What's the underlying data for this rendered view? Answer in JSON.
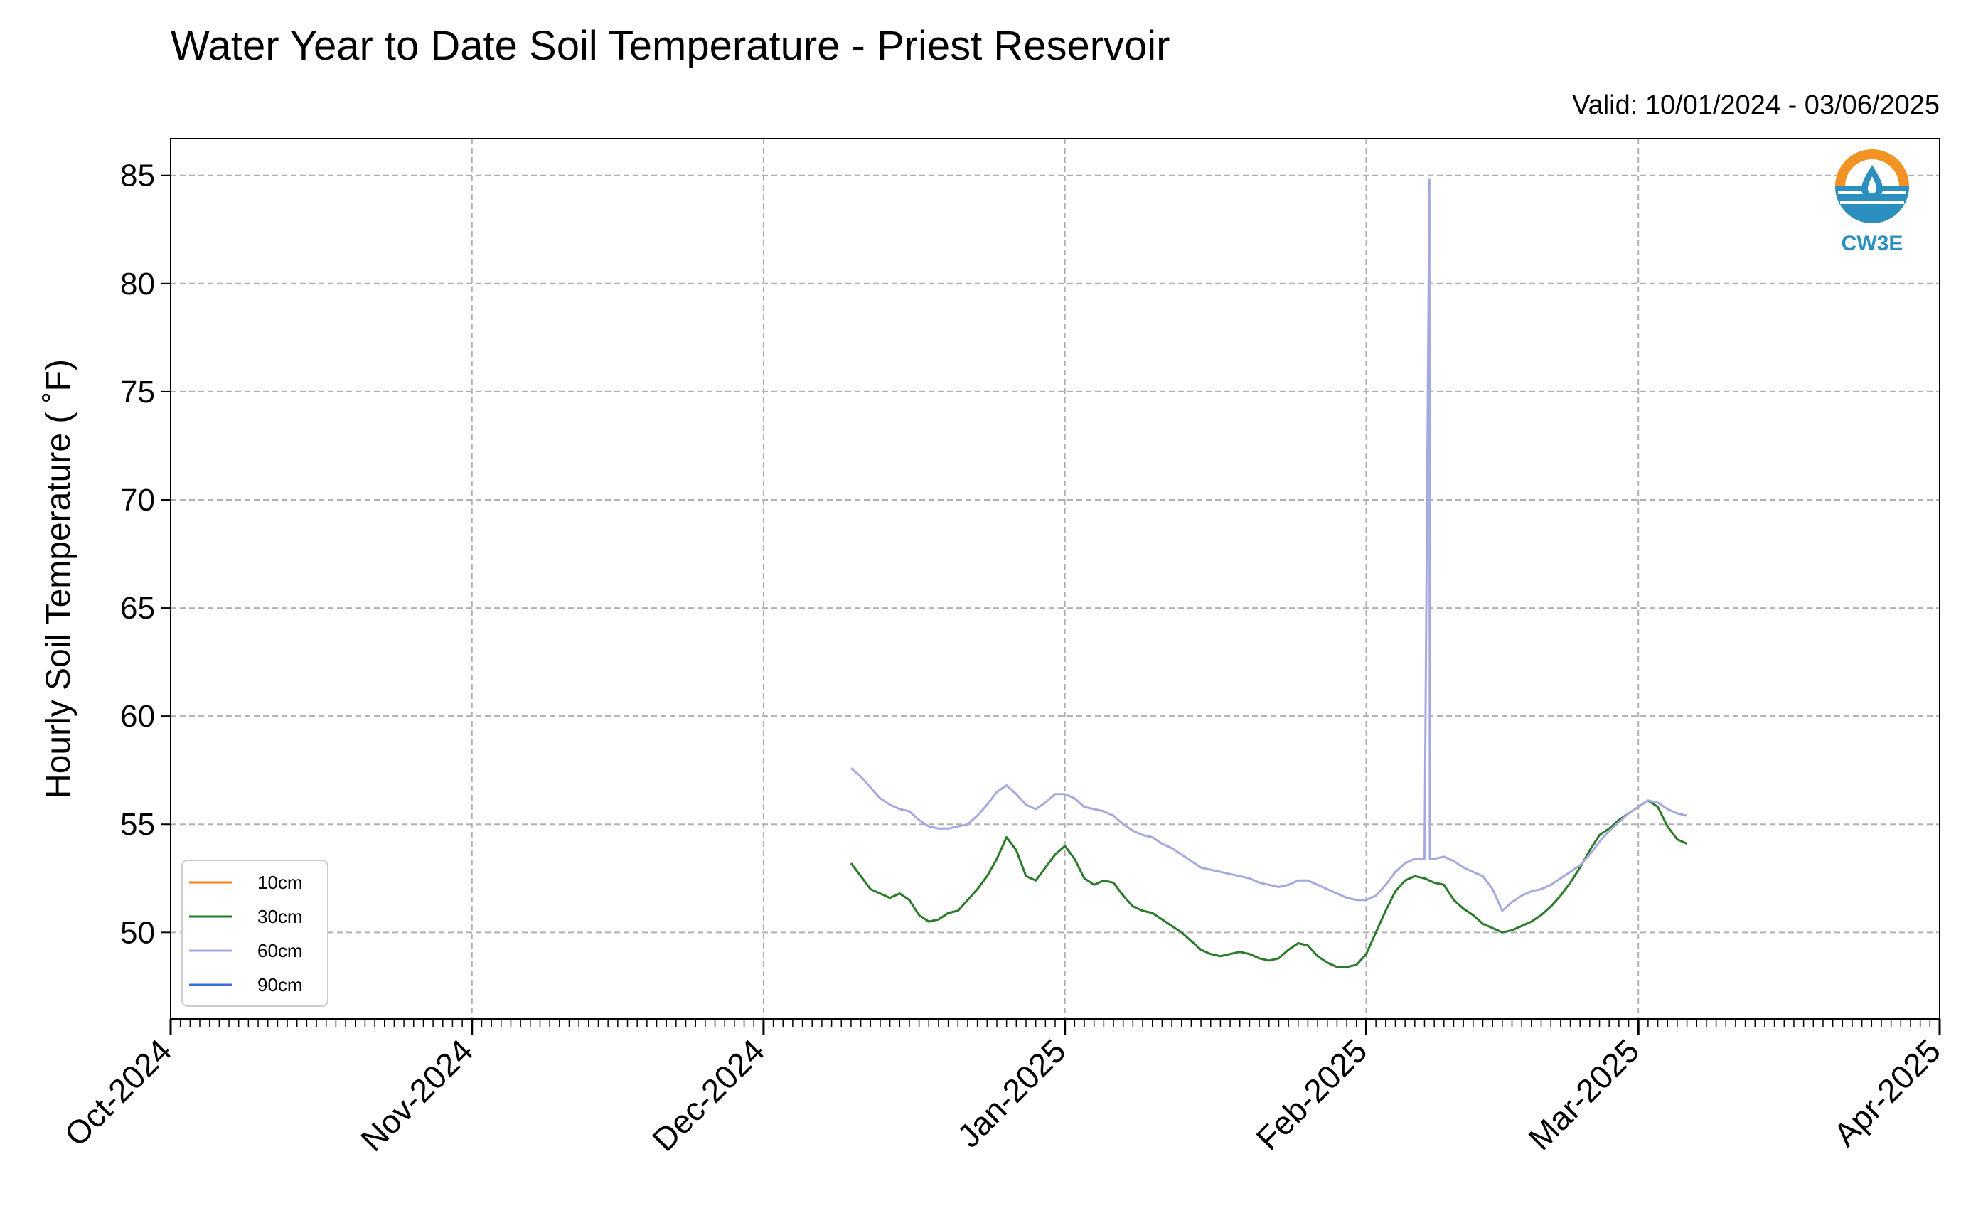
{
  "chart_data": {
    "type": "line",
    "title": "Water Year to Date Soil Temperature - Priest Reservoir",
    "subtitle": "Valid: 10/01/2024 - 03/06/2025",
    "xlabel": "",
    "ylabel": "Hourly Soil Temperature ( ˚F)",
    "x_range": [
      "2024-10-01",
      "2025-04-01"
    ],
    "ylim": [
      46.0,
      86.7
    ],
    "y_ticks": [
      50,
      55,
      60,
      65,
      70,
      75,
      80,
      85
    ],
    "x_ticks": [
      {
        "date": "2024-10-01",
        "label": "Oct-2024"
      },
      {
        "date": "2024-11-01",
        "label": "Nov-2024"
      },
      {
        "date": "2024-12-01",
        "label": "Dec-2024"
      },
      {
        "date": "2025-01-01",
        "label": "Jan-2025"
      },
      {
        "date": "2025-02-01",
        "label": "Feb-2025"
      },
      {
        "date": "2025-03-01",
        "label": "Mar-2025"
      },
      {
        "date": "2025-04-01",
        "label": "Apr-2025"
      }
    ],
    "grid": true,
    "legend_position": "lower-left",
    "series": [
      {
        "name": "10cm",
        "color": "#ff7f0e",
        "points": []
      },
      {
        "name": "30cm",
        "color": "#2a7a2a",
        "points": [
          [
            "2024-12-10",
            53.2
          ],
          [
            "2024-12-11",
            52.6
          ],
          [
            "2024-12-12",
            52.0
          ],
          [
            "2024-12-13",
            51.8
          ],
          [
            "2024-12-14",
            51.6
          ],
          [
            "2024-12-15",
            51.8
          ],
          [
            "2024-12-16",
            51.5
          ],
          [
            "2024-12-17",
            50.8
          ],
          [
            "2024-12-18",
            50.5
          ],
          [
            "2024-12-19",
            50.6
          ],
          [
            "2024-12-20",
            50.9
          ],
          [
            "2024-12-21",
            51.0
          ],
          [
            "2024-12-22",
            51.5
          ],
          [
            "2024-12-23",
            52.0
          ],
          [
            "2024-12-24",
            52.6
          ],
          [
            "2024-12-25",
            53.4
          ],
          [
            "2024-12-26",
            54.4
          ],
          [
            "2024-12-27",
            53.8
          ],
          [
            "2024-12-28",
            52.6
          ],
          [
            "2024-12-29",
            52.4
          ],
          [
            "2024-12-30",
            53.0
          ],
          [
            "2024-12-31",
            53.6
          ],
          [
            "2025-01-01",
            54.0
          ],
          [
            "2025-01-02",
            53.4
          ],
          [
            "2025-01-03",
            52.5
          ],
          [
            "2025-01-04",
            52.2
          ],
          [
            "2025-01-05",
            52.4
          ],
          [
            "2025-01-06",
            52.3
          ],
          [
            "2025-01-07",
            51.7
          ],
          [
            "2025-01-08",
            51.2
          ],
          [
            "2025-01-09",
            51.0
          ],
          [
            "2025-01-10",
            50.9
          ],
          [
            "2025-01-11",
            50.6
          ],
          [
            "2025-01-12",
            50.3
          ],
          [
            "2025-01-13",
            50.0
          ],
          [
            "2025-01-14",
            49.6
          ],
          [
            "2025-01-15",
            49.2
          ],
          [
            "2025-01-16",
            49.0
          ],
          [
            "2025-01-17",
            48.9
          ],
          [
            "2025-01-18",
            49.0
          ],
          [
            "2025-01-19",
            49.1
          ],
          [
            "2025-01-20",
            49.0
          ],
          [
            "2025-01-21",
            48.8
          ],
          [
            "2025-01-22",
            48.7
          ],
          [
            "2025-01-23",
            48.8
          ],
          [
            "2025-01-24",
            49.2
          ],
          [
            "2025-01-25",
            49.5
          ],
          [
            "2025-01-26",
            49.4
          ],
          [
            "2025-01-27",
            48.9
          ],
          [
            "2025-01-28",
            48.6
          ],
          [
            "2025-01-29",
            48.4
          ],
          [
            "2025-01-30",
            48.4
          ],
          [
            "2025-01-31",
            48.5
          ],
          [
            "2025-02-01",
            49.0
          ],
          [
            "2025-02-02",
            50.0
          ],
          [
            "2025-02-03",
            51.0
          ],
          [
            "2025-02-04",
            51.9
          ],
          [
            "2025-02-05",
            52.4
          ],
          [
            "2025-02-06",
            52.6
          ],
          [
            "2025-02-07",
            52.5
          ],
          [
            "2025-02-08",
            52.3
          ],
          [
            "2025-02-09",
            52.2
          ],
          [
            "2025-02-10",
            51.5
          ],
          [
            "2025-02-11",
            51.1
          ],
          [
            "2025-02-12",
            50.8
          ],
          [
            "2025-02-13",
            50.4
          ],
          [
            "2025-02-14",
            50.2
          ],
          [
            "2025-02-15",
            50.0
          ],
          [
            "2025-02-16",
            50.1
          ],
          [
            "2025-02-17",
            50.3
          ],
          [
            "2025-02-18",
            50.5
          ],
          [
            "2025-02-19",
            50.8
          ],
          [
            "2025-02-20",
            51.2
          ],
          [
            "2025-02-21",
            51.7
          ],
          [
            "2025-02-22",
            52.3
          ],
          [
            "2025-02-23",
            53.0
          ],
          [
            "2025-02-24",
            53.8
          ],
          [
            "2025-02-25",
            54.5
          ],
          [
            "2025-02-26",
            54.8
          ],
          [
            "2025-02-27",
            55.2
          ],
          [
            "2025-02-28",
            55.5
          ],
          [
            "2025-03-01",
            55.8
          ],
          [
            "2025-03-02",
            56.1
          ],
          [
            "2025-03-03",
            55.8
          ],
          [
            "2025-03-04",
            54.9
          ],
          [
            "2025-03-05",
            54.3
          ],
          [
            "2025-03-06",
            54.1
          ]
        ]
      },
      {
        "name": "60cm",
        "color": "#a6a8e0",
        "points": [
          [
            "2024-12-10",
            57.6
          ],
          [
            "2024-12-11",
            57.2
          ],
          [
            "2024-12-12",
            56.7
          ],
          [
            "2024-12-13",
            56.2
          ],
          [
            "2024-12-14",
            55.9
          ],
          [
            "2024-12-15",
            55.7
          ],
          [
            "2024-12-16",
            55.6
          ],
          [
            "2024-12-17",
            55.2
          ],
          [
            "2024-12-18",
            54.9
          ],
          [
            "2024-12-19",
            54.8
          ],
          [
            "2024-12-20",
            54.8
          ],
          [
            "2024-12-21",
            54.9
          ],
          [
            "2024-12-22",
            55.0
          ],
          [
            "2024-12-23",
            55.4
          ],
          [
            "2024-12-24",
            55.9
          ],
          [
            "2024-12-25",
            56.5
          ],
          [
            "2024-12-26",
            56.8
          ],
          [
            "2024-12-27",
            56.4
          ],
          [
            "2024-12-28",
            55.9
          ],
          [
            "2024-12-29",
            55.7
          ],
          [
            "2024-12-30",
            56.0
          ],
          [
            "2024-12-31",
            56.4
          ],
          [
            "2025-01-01",
            56.4
          ],
          [
            "2025-01-02",
            56.2
          ],
          [
            "2025-01-03",
            55.8
          ],
          [
            "2025-01-04",
            55.7
          ],
          [
            "2025-01-05",
            55.6
          ],
          [
            "2025-01-06",
            55.4
          ],
          [
            "2025-01-07",
            55.0
          ],
          [
            "2025-01-08",
            54.7
          ],
          [
            "2025-01-09",
            54.5
          ],
          [
            "2025-01-10",
            54.4
          ],
          [
            "2025-01-11",
            54.1
          ],
          [
            "2025-01-12",
            53.9
          ],
          [
            "2025-01-13",
            53.6
          ],
          [
            "2025-01-14",
            53.3
          ],
          [
            "2025-01-15",
            53.0
          ],
          [
            "2025-01-16",
            52.9
          ],
          [
            "2025-01-17",
            52.8
          ],
          [
            "2025-01-18",
            52.7
          ],
          [
            "2025-01-19",
            52.6
          ],
          [
            "2025-01-20",
            52.5
          ],
          [
            "2025-01-21",
            52.3
          ],
          [
            "2025-01-22",
            52.2
          ],
          [
            "2025-01-23",
            52.1
          ],
          [
            "2025-01-24",
            52.2
          ],
          [
            "2025-01-25",
            52.4
          ],
          [
            "2025-01-26",
            52.4
          ],
          [
            "2025-01-27",
            52.2
          ],
          [
            "2025-01-28",
            52.0
          ],
          [
            "2025-01-29",
            51.8
          ],
          [
            "2025-01-30",
            51.6
          ],
          [
            "2025-01-31",
            51.5
          ],
          [
            "2025-02-01",
            51.5
          ],
          [
            "2025-02-02",
            51.7
          ],
          [
            "2025-02-03",
            52.2
          ],
          [
            "2025-02-04",
            52.8
          ],
          [
            "2025-02-05",
            53.2
          ],
          [
            "2025-02-06",
            53.4
          ],
          [
            "2025-02-07",
            53.4
          ],
          [
            "2025-02-07.5",
            84.8
          ],
          [
            "2025-02-07.55",
            53.4
          ],
          [
            "2025-02-08",
            53.4
          ],
          [
            "2025-02-09",
            53.5
          ],
          [
            "2025-02-10",
            53.3
          ],
          [
            "2025-02-11",
            53.0
          ],
          [
            "2025-02-12",
            52.8
          ],
          [
            "2025-02-13",
            52.6
          ],
          [
            "2025-02-14",
            52.0
          ],
          [
            "2025-02-15",
            51.0
          ],
          [
            "2025-02-16",
            51.4
          ],
          [
            "2025-02-17",
            51.7
          ],
          [
            "2025-02-18",
            51.9
          ],
          [
            "2025-02-19",
            52.0
          ],
          [
            "2025-02-20",
            52.2
          ],
          [
            "2025-02-21",
            52.5
          ],
          [
            "2025-02-22",
            52.8
          ],
          [
            "2025-02-23",
            53.1
          ],
          [
            "2025-02-24",
            53.6
          ],
          [
            "2025-02-25",
            54.2
          ],
          [
            "2025-02-26",
            54.7
          ],
          [
            "2025-02-27",
            55.1
          ],
          [
            "2025-02-28",
            55.5
          ],
          [
            "2025-03-01",
            55.8
          ],
          [
            "2025-03-02",
            56.1
          ],
          [
            "2025-03-03",
            56.0
          ],
          [
            "2025-03-04",
            55.7
          ],
          [
            "2025-03-05",
            55.5
          ],
          [
            "2025-03-06",
            55.4
          ]
        ]
      },
      {
        "name": "90cm",
        "color": "#3a6fd8",
        "points": []
      }
    ]
  },
  "logo": {
    "text": "CW3E"
  }
}
